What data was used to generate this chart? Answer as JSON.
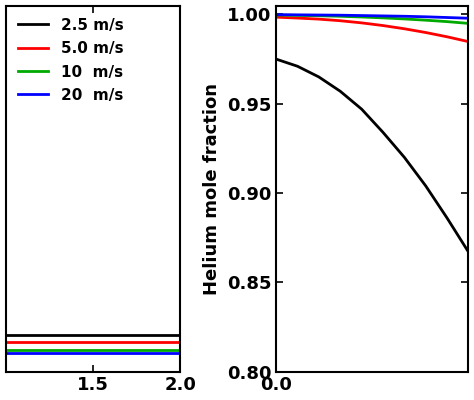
{
  "left_panel": {
    "lines": [
      {
        "label": "2.5 m/s",
        "color": "#000000",
        "x": [
          1.0,
          1.5,
          2.0
        ],
        "y": [
          0.0001,
          0.0001,
          0.0001
        ]
      },
      {
        "label": "5.0 m/s",
        "color": "#ff0000",
        "x": [
          1.0,
          1.5,
          2.0
        ],
        "y": [
          8e-05,
          8e-05,
          8e-05
        ]
      },
      {
        "label": "10  m/s",
        "color": "#00aa00",
        "x": [
          1.0,
          1.5,
          2.0
        ],
        "y": [
          6e-05,
          6e-05,
          6e-05
        ]
      },
      {
        "label": "20  m/s",
        "color": "#0000ff",
        "x": [
          1.0,
          1.5,
          2.0
        ],
        "y": [
          5e-05,
          5e-05,
          5e-05
        ]
      }
    ],
    "xlim": [
      1.0,
      2.0
    ],
    "xticks": [
      1.5,
      2.0
    ],
    "xticklabels": [
      "1.5",
      "2.0"
    ],
    "ylim": [
      0.0,
      0.001
    ],
    "legend_labels": [
      "2.5 m/s",
      "5.0 m/s",
      "10  m/s",
      "20  m/s"
    ],
    "legend_colors": [
      "#000000",
      "#ff0000",
      "#00aa00",
      "#0000ff"
    ]
  },
  "right_panel": {
    "ylabel": "Helium mole fraction",
    "lines": [
      {
        "label": "2.5 m/s",
        "color": "#000000",
        "x": [
          0.0,
          0.15,
          0.3,
          0.45,
          0.6,
          0.75,
          0.9,
          1.05,
          1.2,
          1.35
        ],
        "y": [
          0.975,
          0.971,
          0.965,
          0.957,
          0.947,
          0.934,
          0.92,
          0.904,
          0.886,
          0.867
        ]
      },
      {
        "label": "5.0 m/s",
        "color": "#ff0000",
        "x": [
          0.0,
          0.15,
          0.3,
          0.45,
          0.6,
          0.75,
          0.9,
          1.05,
          1.2,
          1.35
        ],
        "y": [
          0.9985,
          0.998,
          0.9974,
          0.9965,
          0.9953,
          0.9938,
          0.992,
          0.9899,
          0.9875,
          0.9848
        ]
      },
      {
        "label": "10  m/s",
        "color": "#00aa00",
        "x": [
          0.0,
          0.15,
          0.3,
          0.45,
          0.6,
          0.75,
          0.9,
          1.05,
          1.2,
          1.35
        ],
        "y": [
          0.9997,
          0.9995,
          0.9993,
          0.999,
          0.9986,
          0.9981,
          0.9975,
          0.9968,
          0.996,
          0.995
        ]
      },
      {
        "label": "20  m/s",
        "color": "#0000ff",
        "x": [
          0.0,
          0.15,
          0.3,
          0.45,
          0.6,
          0.75,
          0.9,
          1.05,
          1.2,
          1.35
        ],
        "y": [
          0.9999,
          0.9998,
          0.9997,
          0.9996,
          0.9994,
          0.9992,
          0.999,
          0.9987,
          0.9983,
          0.9979
        ]
      }
    ],
    "xlim": [
      0.0,
      1.35
    ],
    "xticks": [
      0.0
    ],
    "xticklabels": [
      "0.0"
    ],
    "ylim": [
      0.8,
      1.005
    ],
    "yticks": [
      0.8,
      0.85,
      0.9,
      0.95,
      1.0
    ],
    "yticklabels": [
      "0.80",
      "0.85",
      "0.90",
      "0.95",
      "1.00"
    ]
  },
  "background_color": "#ffffff",
  "linewidth": 2.0,
  "tick_labelsize": 13,
  "ylabel_fontsize": 13
}
